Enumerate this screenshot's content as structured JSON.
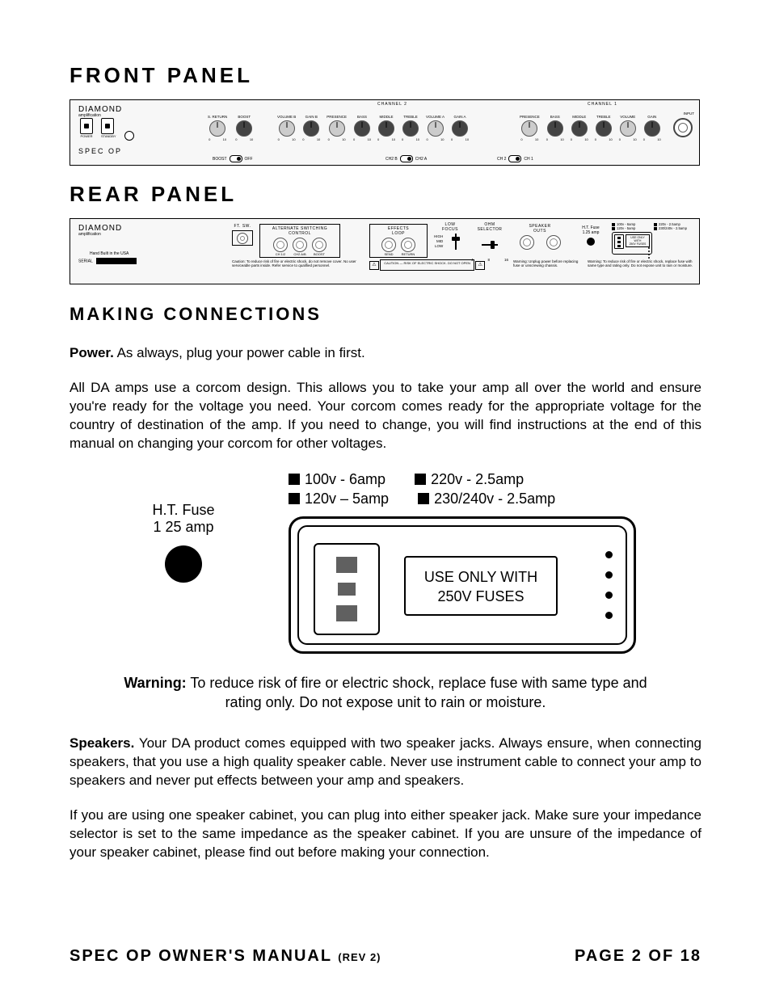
{
  "headings": {
    "front_panel": "FRONT PANEL",
    "rear_panel": "REAR PANEL",
    "making_connections": "MAKING CONNECTIONS"
  },
  "logo": {
    "brand": "DIAMOND",
    "sub": "amplification"
  },
  "front_panel": {
    "model": "SPEC OP",
    "switch_labels": {
      "power": "POWER",
      "standby": "STANDBY"
    },
    "channel2_label": "CHANNEL 2",
    "channel1_label": "CHANNEL 1",
    "pair_knobs": [
      {
        "label": "S. RETURN",
        "style": "light"
      },
      {
        "label": "BOOST",
        "style": "dark"
      }
    ],
    "ch2_knobs": [
      {
        "label": "VOLUME B",
        "style": "light"
      },
      {
        "label": "GAIN B",
        "style": "dark"
      },
      {
        "label": "PRESENCE",
        "style": "light"
      },
      {
        "label": "BASS",
        "style": "dark"
      },
      {
        "label": "MIDDLE",
        "style": "dark"
      },
      {
        "label": "TREBLE",
        "style": "dark"
      },
      {
        "label": "VOLUME A",
        "style": "light"
      },
      {
        "label": "GAIN A",
        "style": "dark"
      }
    ],
    "ch1_knobs": [
      {
        "label": "PRESENCE",
        "style": "light"
      },
      {
        "label": "BASS",
        "style": "dark"
      },
      {
        "label": "MIDDLE",
        "style": "dark"
      },
      {
        "label": "TREBLE",
        "style": "dark"
      },
      {
        "label": "VOLUME",
        "style": "light"
      },
      {
        "label": "GAIN",
        "style": "dark"
      }
    ],
    "tick_lo": "0",
    "tick_hi": "10",
    "toggles": {
      "boost": {
        "off": "OFF",
        "lbl": "BOOST"
      },
      "ch2ab": {
        "a": "CH2 B",
        "b": "CH2 A"
      },
      "ch12": {
        "a": "CH 2",
        "b": "CH 1"
      }
    },
    "input_label": "INPUT"
  },
  "rear_panel": {
    "hand_built": "Hand Built in the USA",
    "serial_label": "SERIAL",
    "ftsw": {
      "title": "FT. SW."
    },
    "alt_switch": {
      "title": "ALTERNATE SWITCHING\nCONTROL",
      "jacks": [
        "CH 1/2",
        "CH2 A/B",
        "BOOST"
      ]
    },
    "caution_text": "Caution: To reduce risk of fire or electric shock, do not remove cover. No user serviceable parts inside. Refer service to qualified personnel.",
    "caution_bar": "CAUTION — RISK OF ELECTRIC SHOCK. DO NOT OPEN",
    "effects": {
      "title": "EFFECTS\nLOOP",
      "jacks": [
        "SEND",
        "RETURN"
      ]
    },
    "low_focus": {
      "title": "LOW\nFOCUS",
      "hi": "HIGH",
      "mid": "MID",
      "lo": "LOW"
    },
    "ohm": {
      "title": "OHM\nSELECTOR",
      "v4": "4",
      "v8": "8",
      "v16": "16"
    },
    "speaker": {
      "title": "SPEAKER\nOUTS",
      "warn": "Warning: Unplug power before replacing fuse or unscrewing chassis."
    },
    "htfuse": {
      "title": "H.T. Fuse",
      "rating": "1.25 amp"
    },
    "voltage_legend": [
      "100v - 6amp",
      "220v - 2.5amp",
      "120v - 5amp",
      "230/240v - 2.5amp"
    ],
    "fuse_box": "USE ONLY WITH\n250V FUSES",
    "warning": "Warning: To reduce risk of fire or electric shock, replace fuse with same type and rating only. Do not expose unit to rain or moisture."
  },
  "body": {
    "power_label": "Power.",
    "power_text": "  As always, plug your power cable in first.",
    "corcom_para": "All DA amps use a corcom design.  This allows you to take your amp all over the world and ensure you're ready for the voltage you need.  Your corcom comes ready for the appropriate voltage for the country of destination of the amp.  If you need to change, you will find instructions at the end of this manual on changing your corcom for other voltages.",
    "diagram": {
      "htfuse_title": "H.T. Fuse",
      "htfuse_rating": "1 25 amp",
      "legend": [
        "100v - 6amp",
        "220v - 2.5amp",
        "120v – 5amp",
        "230/240v - 2.5amp"
      ],
      "fuse_box_l1": "USE ONLY WITH",
      "fuse_box_l2": "250V FUSES"
    },
    "warning_label": "Warning:",
    "warning_text": " To reduce risk of fire or electric shock, replace fuse with same type and rating only. Do not expose unit to rain or moisture.",
    "speakers_label": "Speakers.",
    "speakers_p1": "  Your DA product comes equipped with two speaker jacks.  Always ensure, when connecting speakers, that you use a high quality speaker cable.  Never use instrument cable to connect your amp to speakers and never put effects between your amp and speakers.",
    "speakers_p2": "If you are using one speaker cabinet, you can plug into either speaker jack.  Make sure your impedance selector is set to the same impedance as the speaker cabinet.  If you are unsure of the impedance of your speaker cabinet, please find out before making your connection."
  },
  "footer": {
    "manual": "SPEC OP OWNER'S MANUAL",
    "rev": "(REV 2)",
    "page": "PAGE 2 OF 18"
  },
  "colors": {
    "text": "#000000",
    "panel_bg": "#f7f7f7",
    "knob_dark": "#444444",
    "knob_light": "#cccccc",
    "prong": "#606060"
  }
}
